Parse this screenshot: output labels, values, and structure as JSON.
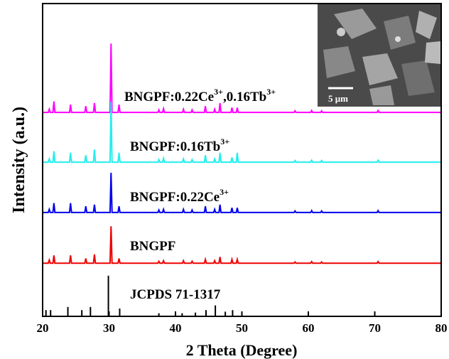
{
  "chart_data": {
    "type": "line",
    "x_label": "2 Theta (Degree)",
    "y_label": "Intensity (a.u.)",
    "xlim": [
      20,
      80
    ],
    "xticks": [
      20,
      30,
      40,
      50,
      60,
      70,
      80
    ],
    "ylim": [
      0,
      100
    ],
    "x": [
      20,
      20.85,
      21,
      21.15,
      21.55,
      21.7,
      21.85,
      24.05,
      24.2,
      24.35,
      26.35,
      26.5,
      26.65,
      27.65,
      27.8,
      27.95,
      30.15,
      30.3,
      30.45,
      31.35,
      31.5,
      31.65,
      37.35,
      37.5,
      37.65,
      38.05,
      38.2,
      38.35,
      41.05,
      41.2,
      41.35,
      42.35,
      42.5,
      42.65,
      44.35,
      44.5,
      44.65,
      45.75,
      45.9,
      46.05,
      46.55,
      46.7,
      46.85,
      48.35,
      48.5,
      48.65,
      49.15,
      49.3,
      49.45,
      57.85,
      58,
      58.15,
      60.35,
      60.5,
      60.65,
      61.85,
      62,
      62.15,
      70.35,
      70.5,
      70.65,
      80
    ],
    "series": [
      {
        "label": [
          {
            "text": "BNGPF:0.22Ce"
          },
          {
            "sup": "3+"
          },
          {
            "text": ",0.16Tb"
          },
          {
            "sup": "3+"
          }
        ],
        "color": "#ff00ff",
        "values": [
          65.2,
          65.2,
          66.2,
          65.2,
          65.2,
          68.7,
          65.2,
          65.2,
          67.7,
          65.2,
          65.2,
          67.2,
          65.2,
          65.2,
          68.2,
          65.2,
          65.2,
          87.2,
          65.2,
          65.2,
          67.7,
          65.2,
          65.2,
          66,
          65.2,
          65.2,
          66.4,
          65.2,
          65.2,
          66.2,
          65.2,
          65.2,
          66,
          65.2,
          65.2,
          67.2,
          65.2,
          65.2,
          66.2,
          65.2,
          65.2,
          68.2,
          65.2,
          65.2,
          66.7,
          65.2,
          65.2,
          66.7,
          65.2,
          65.2,
          65.7,
          65.2,
          65.2,
          65.8,
          65.2,
          65.2,
          65.7,
          65.2,
          65.2,
          65.8,
          65.2,
          65.2
        ]
      },
      {
        "label": [
          {
            "text": "BNGPF:0.16Tb"
          },
          {
            "sup": "3+"
          }
        ],
        "color": "#22eeee",
        "values": [
          49.3,
          49.3,
          50.3,
          49.3,
          49.3,
          52.8,
          49.3,
          49.3,
          52.3,
          49.3,
          49.3,
          51.5,
          49.3,
          49.3,
          53.3,
          49.3,
          49.3,
          68.6,
          49.3,
          49.3,
          52.3,
          49.3,
          49.3,
          50.1,
          49.3,
          49.3,
          50.5,
          49.3,
          49.3,
          50.3,
          49.3,
          49.3,
          50.1,
          49.3,
          49.3,
          51.5,
          49.3,
          49.3,
          50.3,
          49.3,
          49.3,
          52.3,
          49.3,
          49.3,
          50.8,
          49.3,
          49.3,
          52.3,
          49.3,
          49.3,
          49.8,
          49.3,
          49.3,
          49.9,
          49.3,
          49.3,
          49.8,
          49.3,
          49.3,
          49.9,
          49.3,
          49.3
        ]
      },
      {
        "label": [
          {
            "text": "BNGPF:0.22Ce"
          },
          {
            "sup": "3+"
          }
        ],
        "color": "#0000ee",
        "values": [
          33.2,
          33.2,
          34.2,
          33.2,
          33.2,
          36.2,
          33.2,
          33.2,
          36.2,
          33.2,
          33.2,
          35.2,
          33.2,
          33.2,
          35.7,
          33.2,
          33.2,
          45.9,
          33.2,
          33.2,
          35.2,
          33.2,
          33.2,
          34,
          33.2,
          33.2,
          34.2,
          33.2,
          33.2,
          34.2,
          33.2,
          33.2,
          34,
          33.2,
          33.2,
          35.2,
          33.2,
          33.2,
          34.2,
          33.2,
          33.2,
          35.7,
          33.2,
          33.2,
          34.7,
          33.2,
          33.2,
          34.7,
          33.2,
          33.2,
          33.7,
          33.2,
          33.2,
          33.8,
          33.2,
          33.2,
          33.7,
          33.2,
          33.2,
          33.8,
          33.2,
          33.2
        ]
      },
      {
        "label": [
          {
            "text": "BNGPF"
          }
        ],
        "color": "#ee0000",
        "values": [
          17,
          17,
          18,
          17,
          17,
          19.5,
          17,
          17,
          19.5,
          17,
          17,
          18.5,
          17,
          17,
          19.8,
          17,
          17,
          28.8,
          17,
          17,
          18.5,
          17,
          17,
          17.6,
          17,
          17,
          17.8,
          17,
          17,
          17.8,
          17,
          17,
          17.6,
          17,
          17,
          18.2,
          17,
          17,
          17.8,
          17,
          17,
          19,
          17,
          17,
          18.2,
          17,
          17,
          18.2,
          17,
          17,
          17.4,
          17,
          17,
          17.5,
          17,
          17,
          17.4,
          17,
          17,
          17.5,
          17,
          17
        ]
      },
      {
        "label": [
          {
            "text": "JCPDS  71-1317"
          }
        ],
        "color": "#000000",
        "style": "stick",
        "x": [
          20.5,
          21.2,
          23.8,
          25.9,
          27.2,
          29.9,
          31.6,
          37.5,
          41,
          43,
          44.6,
          46,
          47.5,
          48.6,
          50,
          60,
          70
        ],
        "values": [
          2,
          2,
          3,
          2,
          3,
          13,
          2.5,
          1,
          1,
          1.2,
          2,
          3.5,
          1.5,
          2,
          1,
          0.5,
          0.4
        ]
      }
    ],
    "inset": {
      "scale_label": "5 μm"
    }
  }
}
